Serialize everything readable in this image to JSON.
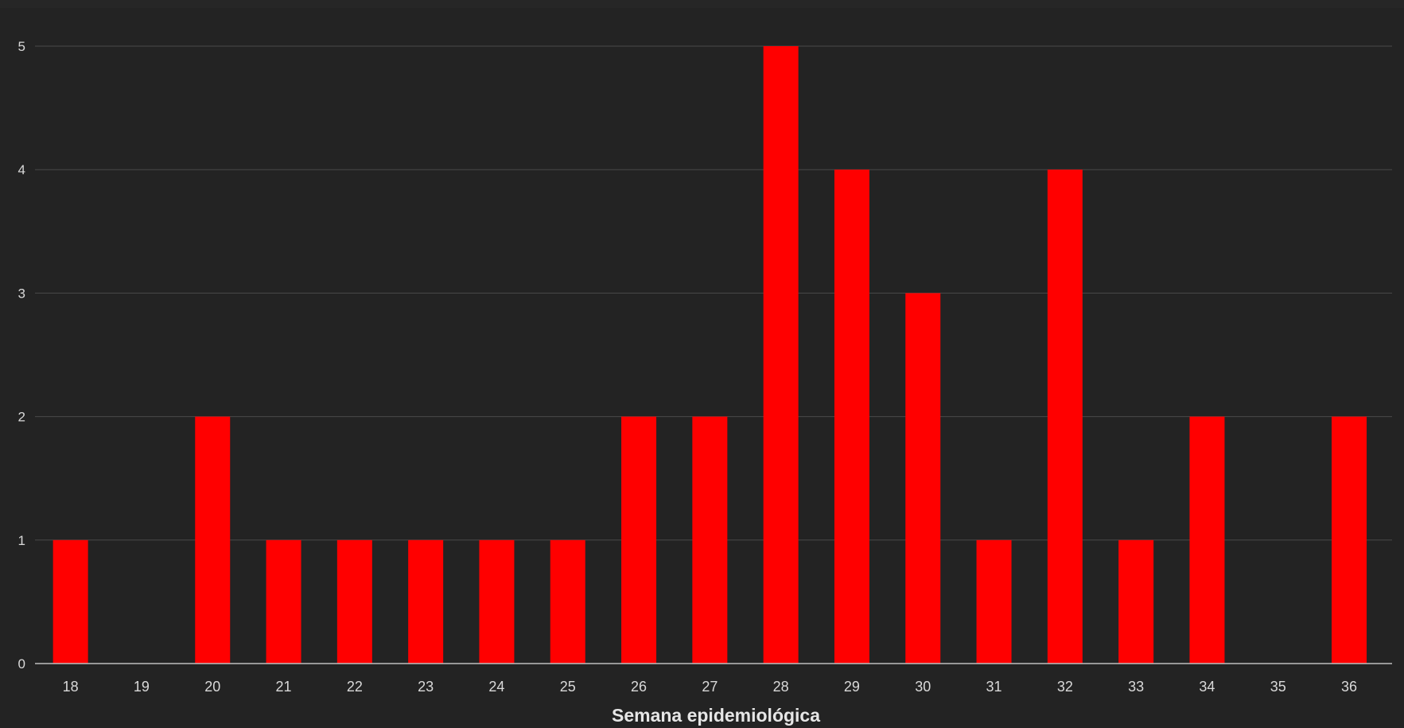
{
  "colors": {
    "background": "#262626",
    "plot_background": "#232323",
    "bar": "#ff0000",
    "grid": "#4a4a4a",
    "axis_line": "#bfbfbf",
    "tick_text": "#d9d9d9",
    "title_text": "#e6e6e6"
  },
  "chart_data": {
    "type": "bar",
    "categories": [
      "18",
      "19",
      "20",
      "21",
      "22",
      "23",
      "24",
      "25",
      "26",
      "27",
      "28",
      "29",
      "30",
      "31",
      "32",
      "33",
      "34",
      "35",
      "36"
    ],
    "values": [
      1,
      0,
      2,
      1,
      1,
      1,
      1,
      1,
      2,
      2,
      5,
      4,
      3,
      1,
      4,
      1,
      2,
      0,
      2
    ],
    "title": "",
    "xlabel": "Semana epidemiológica",
    "ylabel": "",
    "ylim": [
      0,
      5
    ],
    "yticks": [
      0,
      1,
      2,
      3,
      4,
      5
    ],
    "grid": true,
    "legend": "none"
  }
}
